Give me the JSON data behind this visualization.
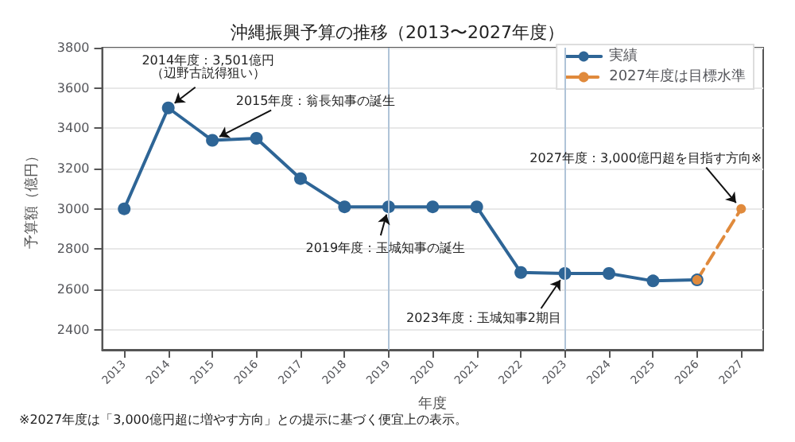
{
  "chart_data": {
    "type": "line",
    "title": "沖縄振興予算の推移（2013〜2027年度）",
    "xlabel": "年度",
    "ylabel": "予算額（億円）",
    "categories": [
      "2013",
      "2014",
      "2015",
      "2016",
      "2017",
      "2018",
      "2019",
      "2020",
      "2021",
      "2022",
      "2023",
      "2024",
      "2025",
      "2026",
      "2027"
    ],
    "series": [
      {
        "name": "実績",
        "color": "#2e6596",
        "values": [
          3000,
          3501,
          3340,
          3350,
          3150,
          3010,
          3010,
          3010,
          3010,
          2684,
          2679,
          2679,
          2642,
          2647,
          null
        ]
      },
      {
        "name": "2027年度は目標水準",
        "color": "#e08a3c",
        "line_style": "dashed",
        "values": [
          null,
          null,
          null,
          null,
          null,
          null,
          null,
          null,
          null,
          null,
          null,
          null,
          null,
          2647,
          3000
        ]
      }
    ],
    "ylim": [
      2300,
      3800
    ],
    "yticks": [
      2400,
      2600,
      2800,
      3000,
      3200,
      3400,
      3600,
      3800
    ],
    "grid": "y",
    "legend": "top right",
    "marker": "circle",
    "line_style": "solid",
    "ref_lines": [
      {
        "axis": "x",
        "value": "2019",
        "color": "#b0c4d8"
      },
      {
        "axis": "x",
        "value": "2023",
        "color": "#b0c4d8"
      }
    ],
    "annotations": [
      {
        "text": "2014年度：3,501億円（辺野古説得狙い）",
        "x": "2014",
        "y": 3501
      },
      {
        "text": "2015年度：翁長知事の誕生",
        "x": "2015",
        "y": 3340
      },
      {
        "text": "2019年度：玉城知事の誕生",
        "x": "2019",
        "y": 3010
      },
      {
        "text": "2023年度：玉城知事2期目",
        "x": "2023",
        "y": 2679
      },
      {
        "text": "2027年度：3,000億円超を目指す方向※",
        "x": "2027",
        "y": 3000
      },
      "※2027年度は「3,000億円超に増やす方向」との提示に基づく便宜上の表示。"
    ]
  }
}
